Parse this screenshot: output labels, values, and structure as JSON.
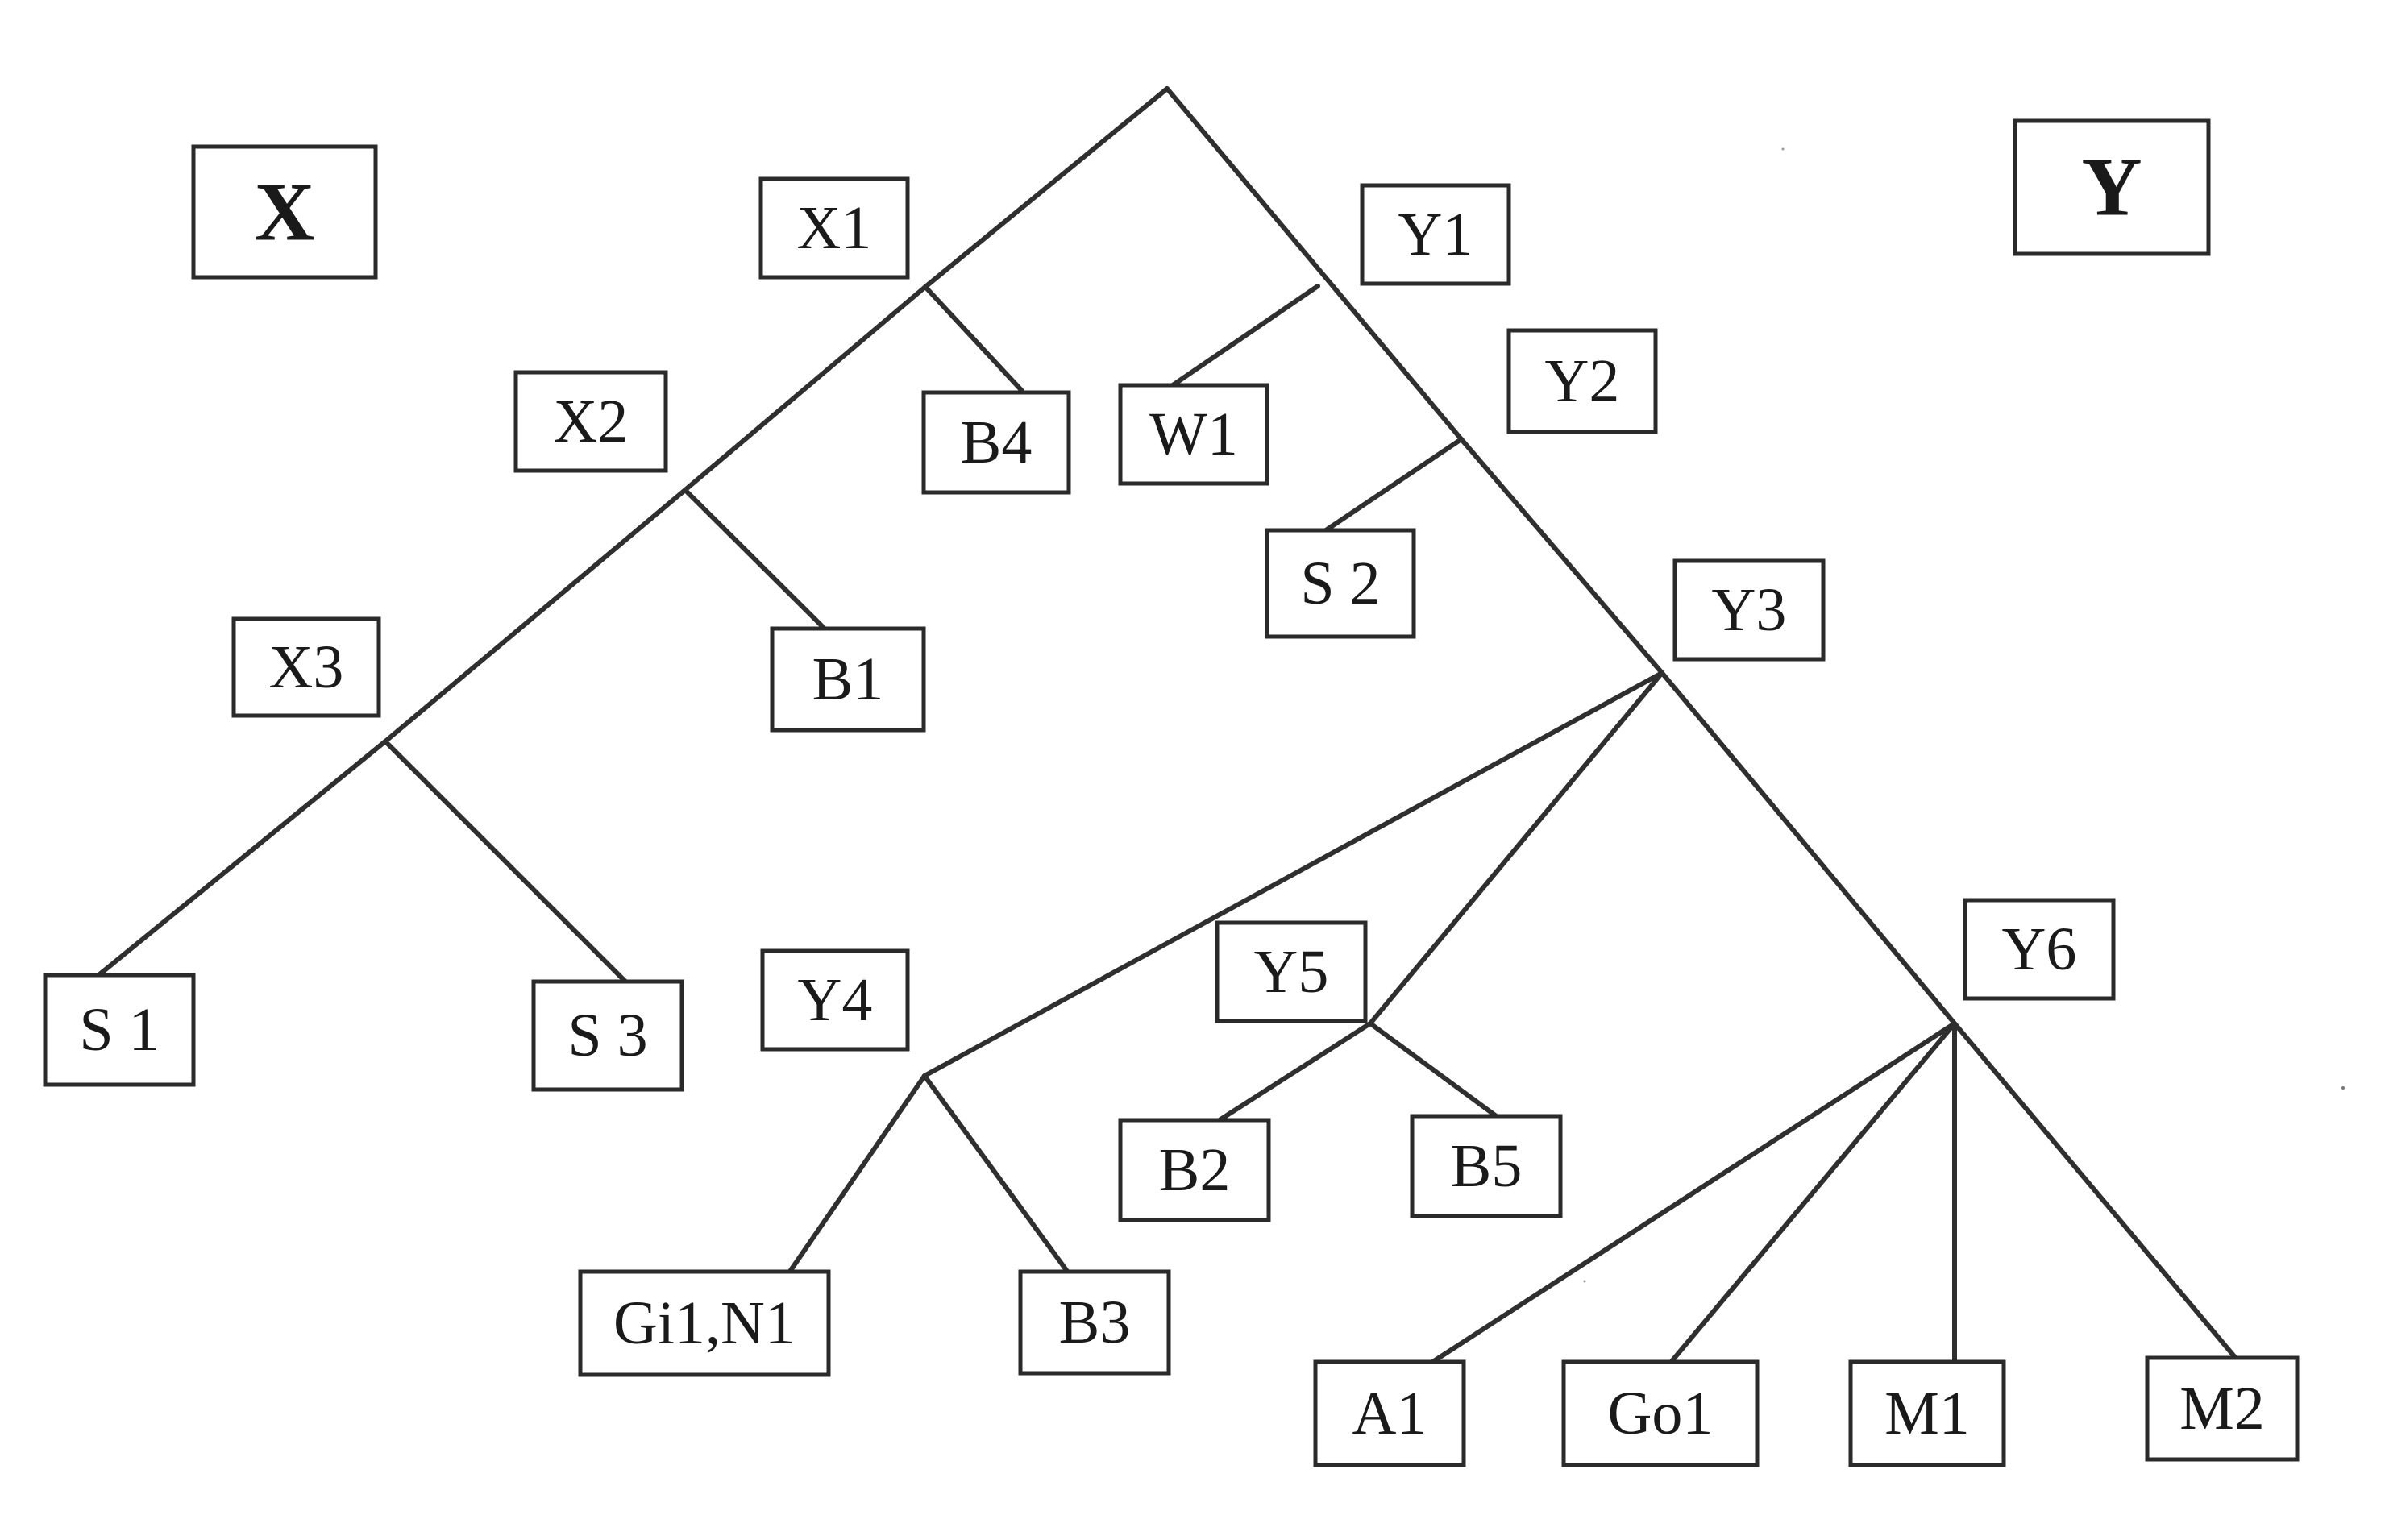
{
  "diagram": {
    "type": "tree",
    "group_labels": {
      "left": "X",
      "right": "Y"
    },
    "nodes": {
      "X1": "X1",
      "X2": "X2",
      "X3": "X3",
      "Y1": "Y1",
      "Y2": "Y2",
      "Y3": "Y3",
      "Y4": "Y4",
      "Y5": "Y5",
      "Y6": "Y6",
      "B1": "B1",
      "B2": "B2",
      "B3": "B3",
      "B4": "B4",
      "B5": "B5",
      "S1": "S 1",
      "S2": "S 2",
      "S3": "S 3",
      "W1": "W1",
      "GiN": "Gi1,N1",
      "A1": "A1",
      "Go1": "Go1",
      "M1": "M1",
      "M2": "M2"
    },
    "edges": [
      [
        "root",
        "X1"
      ],
      [
        "root",
        "Y1"
      ],
      [
        "X1",
        "B4"
      ],
      [
        "X1",
        "X2"
      ],
      [
        "X2",
        "B1"
      ],
      [
        "X2",
        "X3"
      ],
      [
        "X3",
        "S1"
      ],
      [
        "X3",
        "S3"
      ],
      [
        "Y1",
        "W1"
      ],
      [
        "Y1",
        "Y2"
      ],
      [
        "Y2",
        "S2"
      ],
      [
        "Y2",
        "Y3"
      ],
      [
        "Y3",
        "Y4"
      ],
      [
        "Y3",
        "Y5"
      ],
      [
        "Y3",
        "Y6"
      ],
      [
        "Y4",
        "Gi1,N1"
      ],
      [
        "Y4",
        "B3"
      ],
      [
        "Y5",
        "B2"
      ],
      [
        "Y5",
        "B5"
      ],
      [
        "Y6",
        "A1"
      ],
      [
        "Y6",
        "Go1"
      ],
      [
        "Y6",
        "M1"
      ],
      [
        "Y6",
        "M2"
      ]
    ]
  }
}
